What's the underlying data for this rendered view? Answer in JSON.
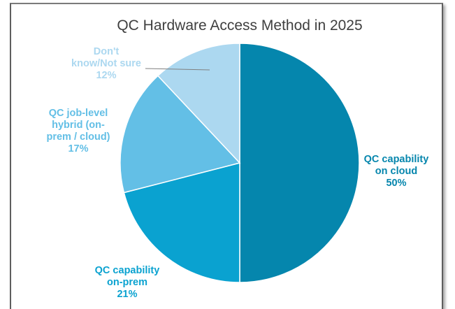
{
  "chart_data": {
    "type": "pie",
    "title": "QC Hardware Access Method in 2025",
    "slices": [
      {
        "label_lines": [
          "QC capability",
          "on cloud"
        ],
        "value": 50,
        "value_label": "50%",
        "color": "#0586ad",
        "label_color": "#0586ad"
      },
      {
        "label_lines": [
          "QC capability",
          "on-prem"
        ],
        "value": 21,
        "value_label": "21%",
        "color": "#0aa2d0",
        "label_color": "#0aa2d0"
      },
      {
        "label_lines": [
          "QC job-level",
          "hybrid (on-",
          "prem / cloud)"
        ],
        "value": 17,
        "value_label": "17%",
        "color": "#63bfe6",
        "label_color": "#63bfe6"
      },
      {
        "label_lines": [
          "Don't",
          "know/Not sure"
        ],
        "value": 12,
        "value_label": "12%",
        "color": "#acd8f0",
        "label_color": "#acd8f0"
      }
    ],
    "legend": "none",
    "start_angle": "top, clockwise"
  }
}
